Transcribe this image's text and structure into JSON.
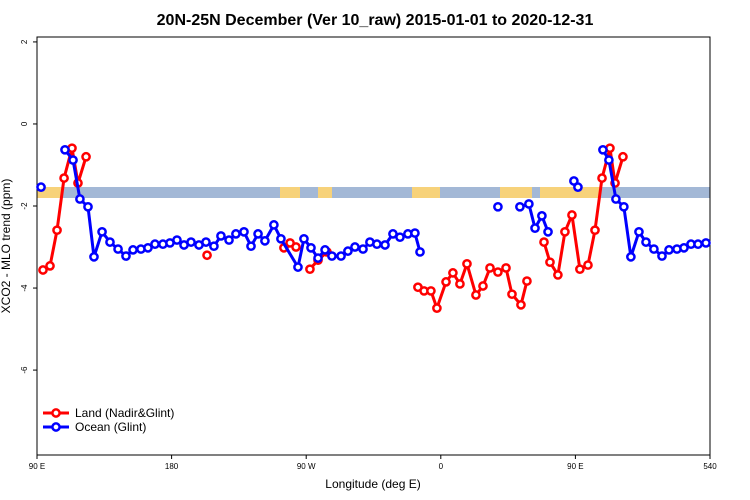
{
  "chart_data": {
    "type": "line",
    "title": "20N-25N December (Ver 10_raw)   2015-01-01 to 2020-12-31",
    "x_label": "Longitude (deg E)",
    "y_label": "XCO2 - MLO trend (ppm)",
    "xlim": [
      90,
      540
    ],
    "xticks": [
      {
        "value": 90,
        "label": "90 E"
      },
      180,
      {
        "value": 270,
        "label": "90 W"
      },
      {
        "value": 360,
        "label": "0"
      },
      {
        "value": 450,
        "label": "90 E"
      },
      540
    ],
    "ylim": [
      -8.07,
      2.12
    ],
    "yticks": [
      -6,
      -4,
      -2,
      0,
      2
    ],
    "legend": "bottom-left",
    "series": [
      {
        "name": "Land (Nadir&Glint)",
        "color": "#ff0000",
        "x": [
          94.0,
          98.7,
          103.4,
          108.1,
          113.4,
          117.4,
          122.8,
          null,
          203.7,
          null,
          255.1,
          259.2,
          263.2,
          null,
          272.5,
          277.9,
          283.9,
          null,
          344.7,
          348.8,
          353.4,
          357.4,
          363.5,
          368.1,
          372.8,
          377.5,
          383.5,
          388.2,
          392.9,
          398.2,
          403.6,
          407.6,
          413.6,
          417.6,
          null,
          429.0,
          433.0,
          438.3,
          443.0,
          447.7,
          453.0,
          458.4,
          463.1,
          467.8,
          473.1,
          476.5,
          481.8
        ],
        "values": [
          -3.56,
          -3.46,
          -2.59,
          -1.32,
          -0.59,
          -1.44,
          -0.8,
          null,
          -3.2,
          null,
          -3.02,
          -2.9,
          -3.0,
          null,
          -3.54,
          -3.32,
          -3.12,
          null,
          -3.98,
          -4.07,
          -4.07,
          -4.49,
          -3.85,
          -3.63,
          -3.9,
          -3.41,
          -4.17,
          -3.95,
          -3.51,
          -3.61,
          -3.51,
          -4.15,
          -4.41,
          -3.83,
          null,
          -2.88,
          -3.37,
          -3.68,
          -2.63,
          -2.22,
          -3.54,
          -3.44,
          -2.59,
          -1.32,
          -0.59,
          -1.44,
          -0.8
        ]
      },
      {
        "name": "Ocean (Glint)",
        "color": "#0000ff",
        "x": [
          92.7,
          null,
          108.7,
          114.1,
          118.7,
          124.1,
          128.1,
          133.5,
          138.8,
          144.2,
          149.5,
          154.2,
          159.5,
          164.2,
          168.9,
          174.2,
          178.9,
          183.6,
          188.3,
          193.0,
          198.3,
          203.0,
          208.3,
          213.0,
          218.4,
          223.0,
          228.4,
          233.1,
          237.8,
          242.4,
          248.4,
          253.1,
          264.5,
          268.5,
          273.2,
          277.9,
          282.6,
          287.2,
          293.3,
          297.9,
          302.6,
          308.0,
          312.6,
          317.3,
          322.7,
          328.0,
          332.7,
          338.0,
          342.7,
          346.1,
          null,
          398.2,
          null,
          412.9,
          418.9,
          423.0,
          427.6,
          431.7,
          null,
          449.0,
          451.7,
          null,
          468.4,
          472.4,
          477.1,
          482.4,
          487.1,
          492.5,
          497.2,
          502.5,
          507.9,
          512.6,
          517.9,
          522.6,
          527.3,
          532.0,
          537.3
        ],
        "values": [
          -1.54,
          null,
          -0.63,
          -0.88,
          -1.83,
          -2.02,
          -3.24,
          -2.63,
          -2.88,
          -3.05,
          -3.22,
          -3.07,
          -3.05,
          -3.02,
          -2.93,
          -2.93,
          -2.9,
          -2.83,
          -2.95,
          -2.88,
          -2.95,
          -2.88,
          -2.98,
          -2.73,
          -2.83,
          -2.68,
          -2.63,
          -2.98,
          -2.68,
          -2.85,
          -2.46,
          -2.8,
          -3.49,
          -2.8,
          -3.02,
          -3.27,
          -3.07,
          -3.22,
          -3.22,
          -3.1,
          -3.0,
          -3.05,
          -2.88,
          -2.93,
          -2.95,
          -2.68,
          -2.76,
          -2.68,
          -2.66,
          -3.12,
          null,
          -2.02,
          null,
          -2.02,
          -1.95,
          -2.54,
          -2.24,
          -2.63,
          null,
          -1.39,
          -1.54,
          null,
          -0.63,
          -0.88,
          -1.83,
          -2.02,
          -3.24,
          -2.63,
          -2.88,
          -3.05,
          -3.22,
          -3.07,
          -3.05,
          -3.02,
          -2.93,
          -2.93,
          -2.9
        ]
      }
    ]
  }
}
